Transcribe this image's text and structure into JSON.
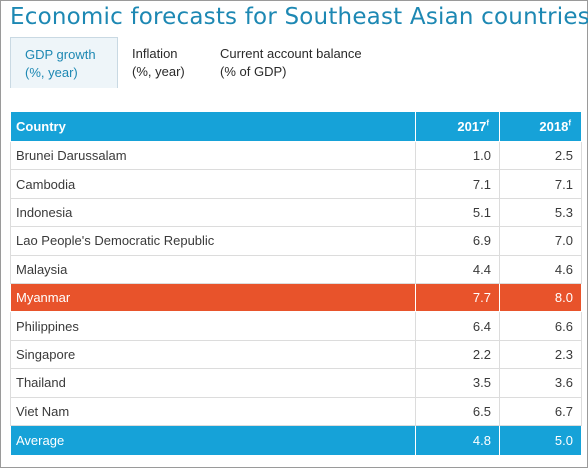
{
  "title": "Economic forecasts for Southeast Asian countries",
  "tabs": [
    {
      "line1": "GDP growth",
      "line2": "(%, year)",
      "active": true
    },
    {
      "line1": "Inflation",
      "line2": "(%, year)",
      "active": false
    },
    {
      "line1": "Current account balance",
      "line2": "(% of GDP)",
      "active": false
    }
  ],
  "table": {
    "header": {
      "country": "Country",
      "col2017": "2017",
      "col2018": "2018",
      "forecast_mark": "f"
    },
    "rows": [
      {
        "country": "Brunei Darussalam",
        "v2017": "1.0",
        "v2018": "2.5"
      },
      {
        "country": "Cambodia",
        "v2017": "7.1",
        "v2018": "7.1"
      },
      {
        "country": "Indonesia",
        "v2017": "5.1",
        "v2018": "5.3"
      },
      {
        "country": "Lao People's Democratic Republic",
        "v2017": "6.9",
        "v2018": "7.0"
      },
      {
        "country": "Malaysia",
        "v2017": "4.4",
        "v2018": "4.6"
      },
      {
        "country": "Myanmar",
        "v2017": "7.7",
        "v2018": "8.0"
      },
      {
        "country": "Philippines",
        "v2017": "6.4",
        "v2018": "6.6"
      },
      {
        "country": "Singapore",
        "v2017": "2.2",
        "v2018": "2.3"
      },
      {
        "country": "Thailand",
        "v2017": "3.5",
        "v2018": "3.6"
      },
      {
        "country": "Viet Nam",
        "v2017": "6.5",
        "v2018": "6.7"
      }
    ],
    "average": {
      "country": "Average",
      "v2017": "4.8",
      "v2018": "5.0"
    }
  },
  "colors": {
    "title": "#1d88b3",
    "header_bg": "#16a2d8",
    "highlight_bg": "#e8532b"
  }
}
